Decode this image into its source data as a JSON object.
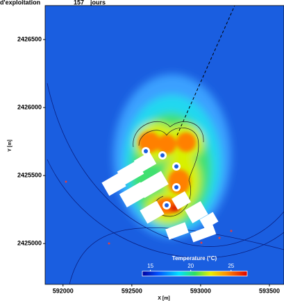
{
  "header": {
    "title": "d'exploitation",
    "days": "157",
    "unit": "jours"
  },
  "chart_data": {
    "type": "contour",
    "xlabel": "X [m]",
    "ylabel": "Y [m]",
    "xlim": [
      591870,
      593606
    ],
    "ylim": [
      2424700,
      2426750
    ],
    "xticks": [
      592000,
      592500,
      593000,
      593500
    ],
    "yticks": [
      2425000,
      2425500,
      2426000,
      2426500
    ],
    "colorbar": {
      "label": "Temperature  (°C)",
      "lim": [
        14,
        27
      ],
      "ticks": [
        15,
        20,
        25
      ]
    }
  }
}
